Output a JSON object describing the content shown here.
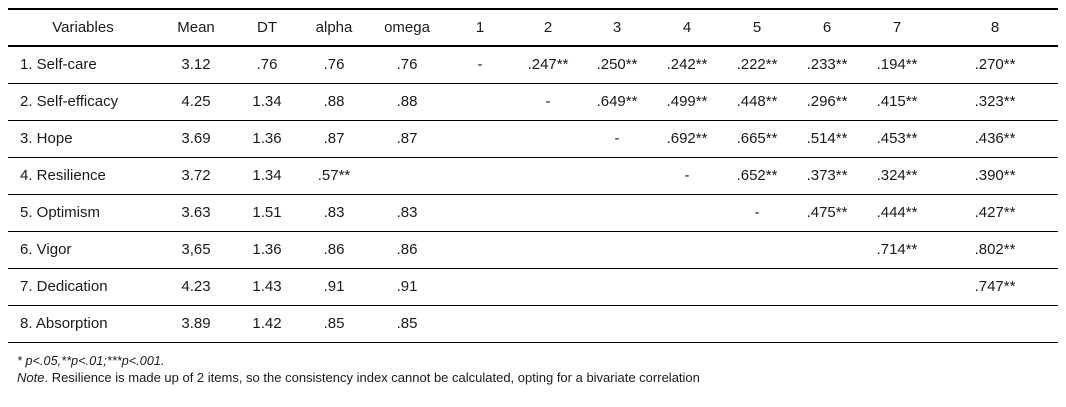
{
  "table": {
    "columns": [
      "Variables",
      "Mean",
      "DT",
      "alpha",
      "omega",
      "1",
      "2",
      "3",
      "4",
      "5",
      "6",
      "7",
      "8"
    ],
    "rows": [
      [
        "1. Self-care",
        "3.12",
        ".76",
        ".76",
        ".76",
        "-",
        ".247**",
        ".250**",
        ".242**",
        ".222**",
        ".233**",
        ".194**",
        ".270**"
      ],
      [
        "2. Self-efficacy",
        "4.25",
        "1.34",
        ".88",
        ".88",
        "",
        "-",
        ".649**",
        ".499**",
        ".448**",
        ".296**",
        ".415**",
        ".323**"
      ],
      [
        "3. Hope",
        "3.69",
        "1.36",
        ".87",
        ".87",
        "",
        "",
        "-",
        ".692**",
        ".665**",
        ".514**",
        ".453**",
        ".436**"
      ],
      [
        "4. Resilience",
        "3.72",
        "1.34",
        ".57**",
        "",
        "",
        "",
        "",
        "-",
        ".652**",
        ".373**",
        ".324**",
        ".390**"
      ],
      [
        "5. Optimism",
        "3.63",
        "1.51",
        ".83",
        ".83",
        "",
        "",
        "",
        "",
        "-",
        ".475**",
        ".444**",
        ".427**"
      ],
      [
        "6. Vigor",
        "3,65",
        "1.36",
        ".86",
        ".86",
        "",
        "",
        "",
        "",
        "",
        "",
        ".714**",
        ".802**"
      ],
      [
        "7. Dedication",
        "4.23",
        "1.43",
        ".91",
        ".91",
        "",
        "",
        "",
        "",
        "",
        "",
        "",
        ".747**"
      ],
      [
        "8. Absorption",
        "3.89",
        "1.42",
        ".85",
        ".85",
        "",
        "",
        "",
        "",
        "",
        "",
        "",
        ""
      ]
    ]
  },
  "notes": {
    "significance": "* p<.05,**p<.01;***p<.001.",
    "note_label": "Note",
    "note_text": ". Resilience is made up of 2 items, so the consistency index cannot be calculated, opting for a bivariate correlation"
  },
  "colors": {
    "text": "#1a1a1a",
    "line": "#000000",
    "background": "#ffffff"
  }
}
